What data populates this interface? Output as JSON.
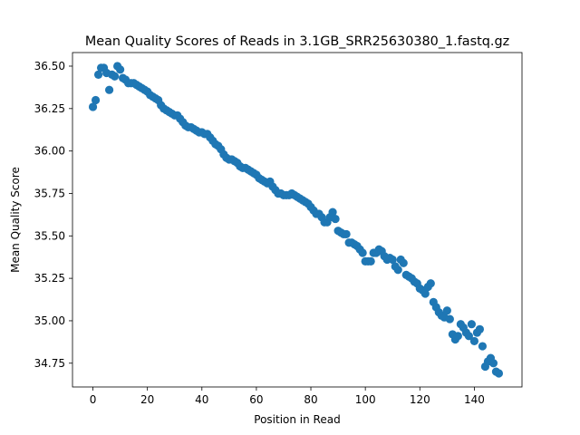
{
  "chart_data": {
    "type": "scatter",
    "title": "Mean Quality Scores of Reads in 3.1GB_SRR25630380_1.fastq.gz",
    "xlabel": "Position in Read",
    "ylabel": "Mean Quality Score",
    "xlim": [
      -7.5,
      157.5
    ],
    "ylim": [
      34.61,
      36.58
    ],
    "xticks": [
      0,
      20,
      40,
      60,
      80,
      100,
      120,
      140
    ],
    "yticks": [
      34.75,
      35.0,
      35.25,
      35.5,
      35.75,
      36.0,
      36.25,
      36.5
    ],
    "ytick_labels": [
      "34.75",
      "35.00",
      "35.25",
      "35.50",
      "35.75",
      "36.00",
      "36.25",
      "36.50"
    ],
    "grid": false,
    "color": "#1f77b4",
    "x": [
      0,
      1,
      2,
      3,
      4,
      5,
      6,
      7,
      8,
      9,
      10,
      11,
      12,
      13,
      14,
      15,
      16,
      17,
      18,
      19,
      20,
      21,
      22,
      23,
      24,
      25,
      26,
      27,
      28,
      29,
      30,
      31,
      32,
      33,
      34,
      35,
      36,
      37,
      38,
      39,
      40,
      41,
      42,
      43,
      44,
      45,
      46,
      47,
      48,
      49,
      50,
      51,
      52,
      53,
      54,
      55,
      56,
      57,
      58,
      59,
      60,
      61,
      62,
      63,
      64,
      65,
      66,
      67,
      68,
      69,
      70,
      71,
      72,
      73,
      74,
      75,
      76,
      77,
      78,
      79,
      80,
      81,
      82,
      83,
      84,
      85,
      86,
      87,
      88,
      89,
      90,
      91,
      92,
      93,
      94,
      95,
      96,
      97,
      98,
      99,
      100,
      101,
      102,
      103,
      104,
      105,
      106,
      107,
      108,
      109,
      110,
      111,
      112,
      113,
      114,
      115,
      116,
      117,
      118,
      119,
      120,
      121,
      122,
      123,
      124,
      125,
      126,
      127,
      128,
      129,
      130,
      131,
      132,
      133,
      134,
      135,
      136,
      137,
      138,
      139,
      140,
      141,
      142,
      143,
      144,
      145,
      146,
      147,
      148,
      149
    ],
    "y": [
      36.26,
      36.3,
      36.45,
      36.49,
      36.49,
      36.46,
      36.36,
      36.45,
      36.44,
      36.5,
      36.48,
      36.43,
      36.42,
      36.4,
      36.4,
      36.4,
      36.39,
      36.38,
      36.37,
      36.36,
      36.35,
      36.33,
      36.32,
      36.31,
      36.3,
      36.27,
      36.25,
      36.24,
      36.23,
      36.22,
      36.21,
      36.21,
      36.19,
      36.17,
      36.15,
      36.14,
      36.14,
      36.13,
      36.12,
      36.11,
      36.11,
      36.1,
      36.1,
      36.08,
      36.06,
      36.04,
      36.03,
      36.01,
      35.98,
      35.96,
      35.95,
      35.95,
      35.94,
      35.93,
      35.91,
      35.9,
      35.9,
      35.89,
      35.88,
      35.87,
      35.86,
      35.84,
      35.83,
      35.82,
      35.81,
      35.82,
      35.79,
      35.77,
      35.75,
      35.75,
      35.74,
      35.74,
      35.74,
      35.75,
      35.74,
      35.73,
      35.72,
      35.71,
      35.7,
      35.69,
      35.67,
      35.65,
      35.63,
      35.63,
      35.61,
      35.58,
      35.58,
      35.61,
      35.64,
      35.6,
      35.53,
      35.52,
      35.51,
      35.51,
      35.46,
      35.46,
      35.45,
      35.44,
      35.42,
      35.4,
      35.35,
      35.35,
      35.35,
      35.4,
      35.4,
      35.42,
      35.41,
      35.38,
      35.36,
      35.37,
      35.36,
      35.32,
      35.3,
      35.36,
      35.34,
      35.27,
      35.26,
      35.25,
      35.23,
      35.22,
      35.19,
      35.18,
      35.16,
      35.2,
      35.22,
      35.11,
      35.08,
      35.05,
      35.03,
      35.02,
      35.06,
      35.01,
      34.92,
      34.89,
      34.91,
      34.98,
      34.96,
      34.93,
      34.91,
      34.98,
      34.88,
      34.93,
      34.95,
      34.85,
      34.73,
      34.76,
      34.78,
      34.75,
      34.7,
      34.69
    ]
  }
}
